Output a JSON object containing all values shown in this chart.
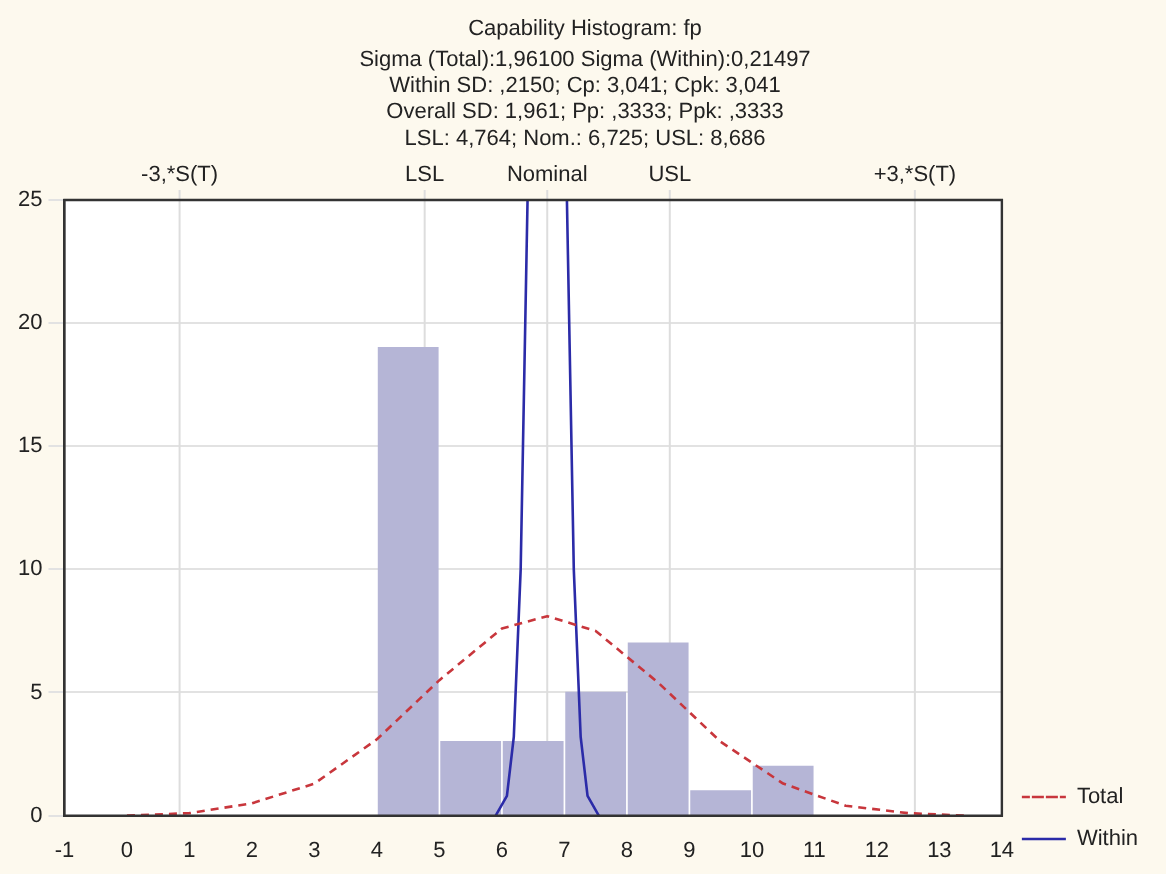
{
  "chart_data": {
    "type": "histogram",
    "title": "Capability Histogram: fp",
    "subtitle": "Sigma (Total):1,96100 Sigma (Within):0,21497\nWithin SD: ,2150; Cp: 3,041; Cpk: 3,041\nOverall SD: 1,961; Pp: ,3333; Ppk: ,3333\nLSL: 4,764; Nom.: 6,725; USL: 8,686",
    "bins": [
      4,
      5,
      6,
      7,
      8,
      9,
      10,
      11
    ],
    "values": [
      19,
      3,
      3,
      5,
      7,
      1,
      2
    ],
    "color": "#b5b5d6",
    "series": [
      {
        "type": "line",
        "name": "Total",
        "color": "#c8363c",
        "line_style": "dashed",
        "x": [
          0,
          1,
          2,
          3,
          4,
          5,
          6,
          6.725,
          7.5,
          8.5,
          9.5,
          10.5,
          11.5,
          12.5,
          13.4
        ],
        "values": [
          0,
          0.1,
          0.5,
          1.3,
          3.1,
          5.5,
          7.6,
          8.1,
          7.5,
          5.4,
          3,
          1.3,
          0.4,
          0.1,
          0
        ]
      },
      {
        "type": "line",
        "name": "Within",
        "color": "#2b2ba8",
        "line_style": "solid",
        "x": [
          5.9,
          6.08,
          6.19,
          6.3,
          6.41,
          6.725,
          7.04,
          7.15,
          7.26,
          7.37,
          7.55
        ],
        "values": [
          0,
          0.8,
          3.2,
          10,
          25,
          null,
          25,
          10,
          3.2,
          0.8,
          0
        ]
      }
    ],
    "xlim": [
      -1,
      14
    ],
    "xticks": [
      -1,
      0,
      1,
      2,
      3,
      4,
      5,
      6,
      7,
      8,
      9,
      10,
      11,
      12,
      13,
      14
    ],
    "ylim": [
      0,
      25
    ],
    "yticks": [
      0,
      5,
      10,
      15,
      20,
      25
    ],
    "ref_lines": [
      {
        "axis": "x",
        "value": 0.842,
        "label": "-3,*S(T)",
        "color": "#dddddd"
      },
      {
        "axis": "x",
        "value": 4.764,
        "label": "LSL",
        "color": "#dddddd"
      },
      {
        "axis": "x",
        "value": 6.725,
        "label": "Nominal",
        "color": "#dddddd"
      },
      {
        "axis": "x",
        "value": 8.686,
        "label": "USL",
        "color": "#dddddd"
      },
      {
        "axis": "x",
        "value": 12.608,
        "label": "+3,*S(T)",
        "color": "#dddddd"
      }
    ],
    "grid": "y",
    "legend": "bottom right",
    "marker": "none"
  }
}
